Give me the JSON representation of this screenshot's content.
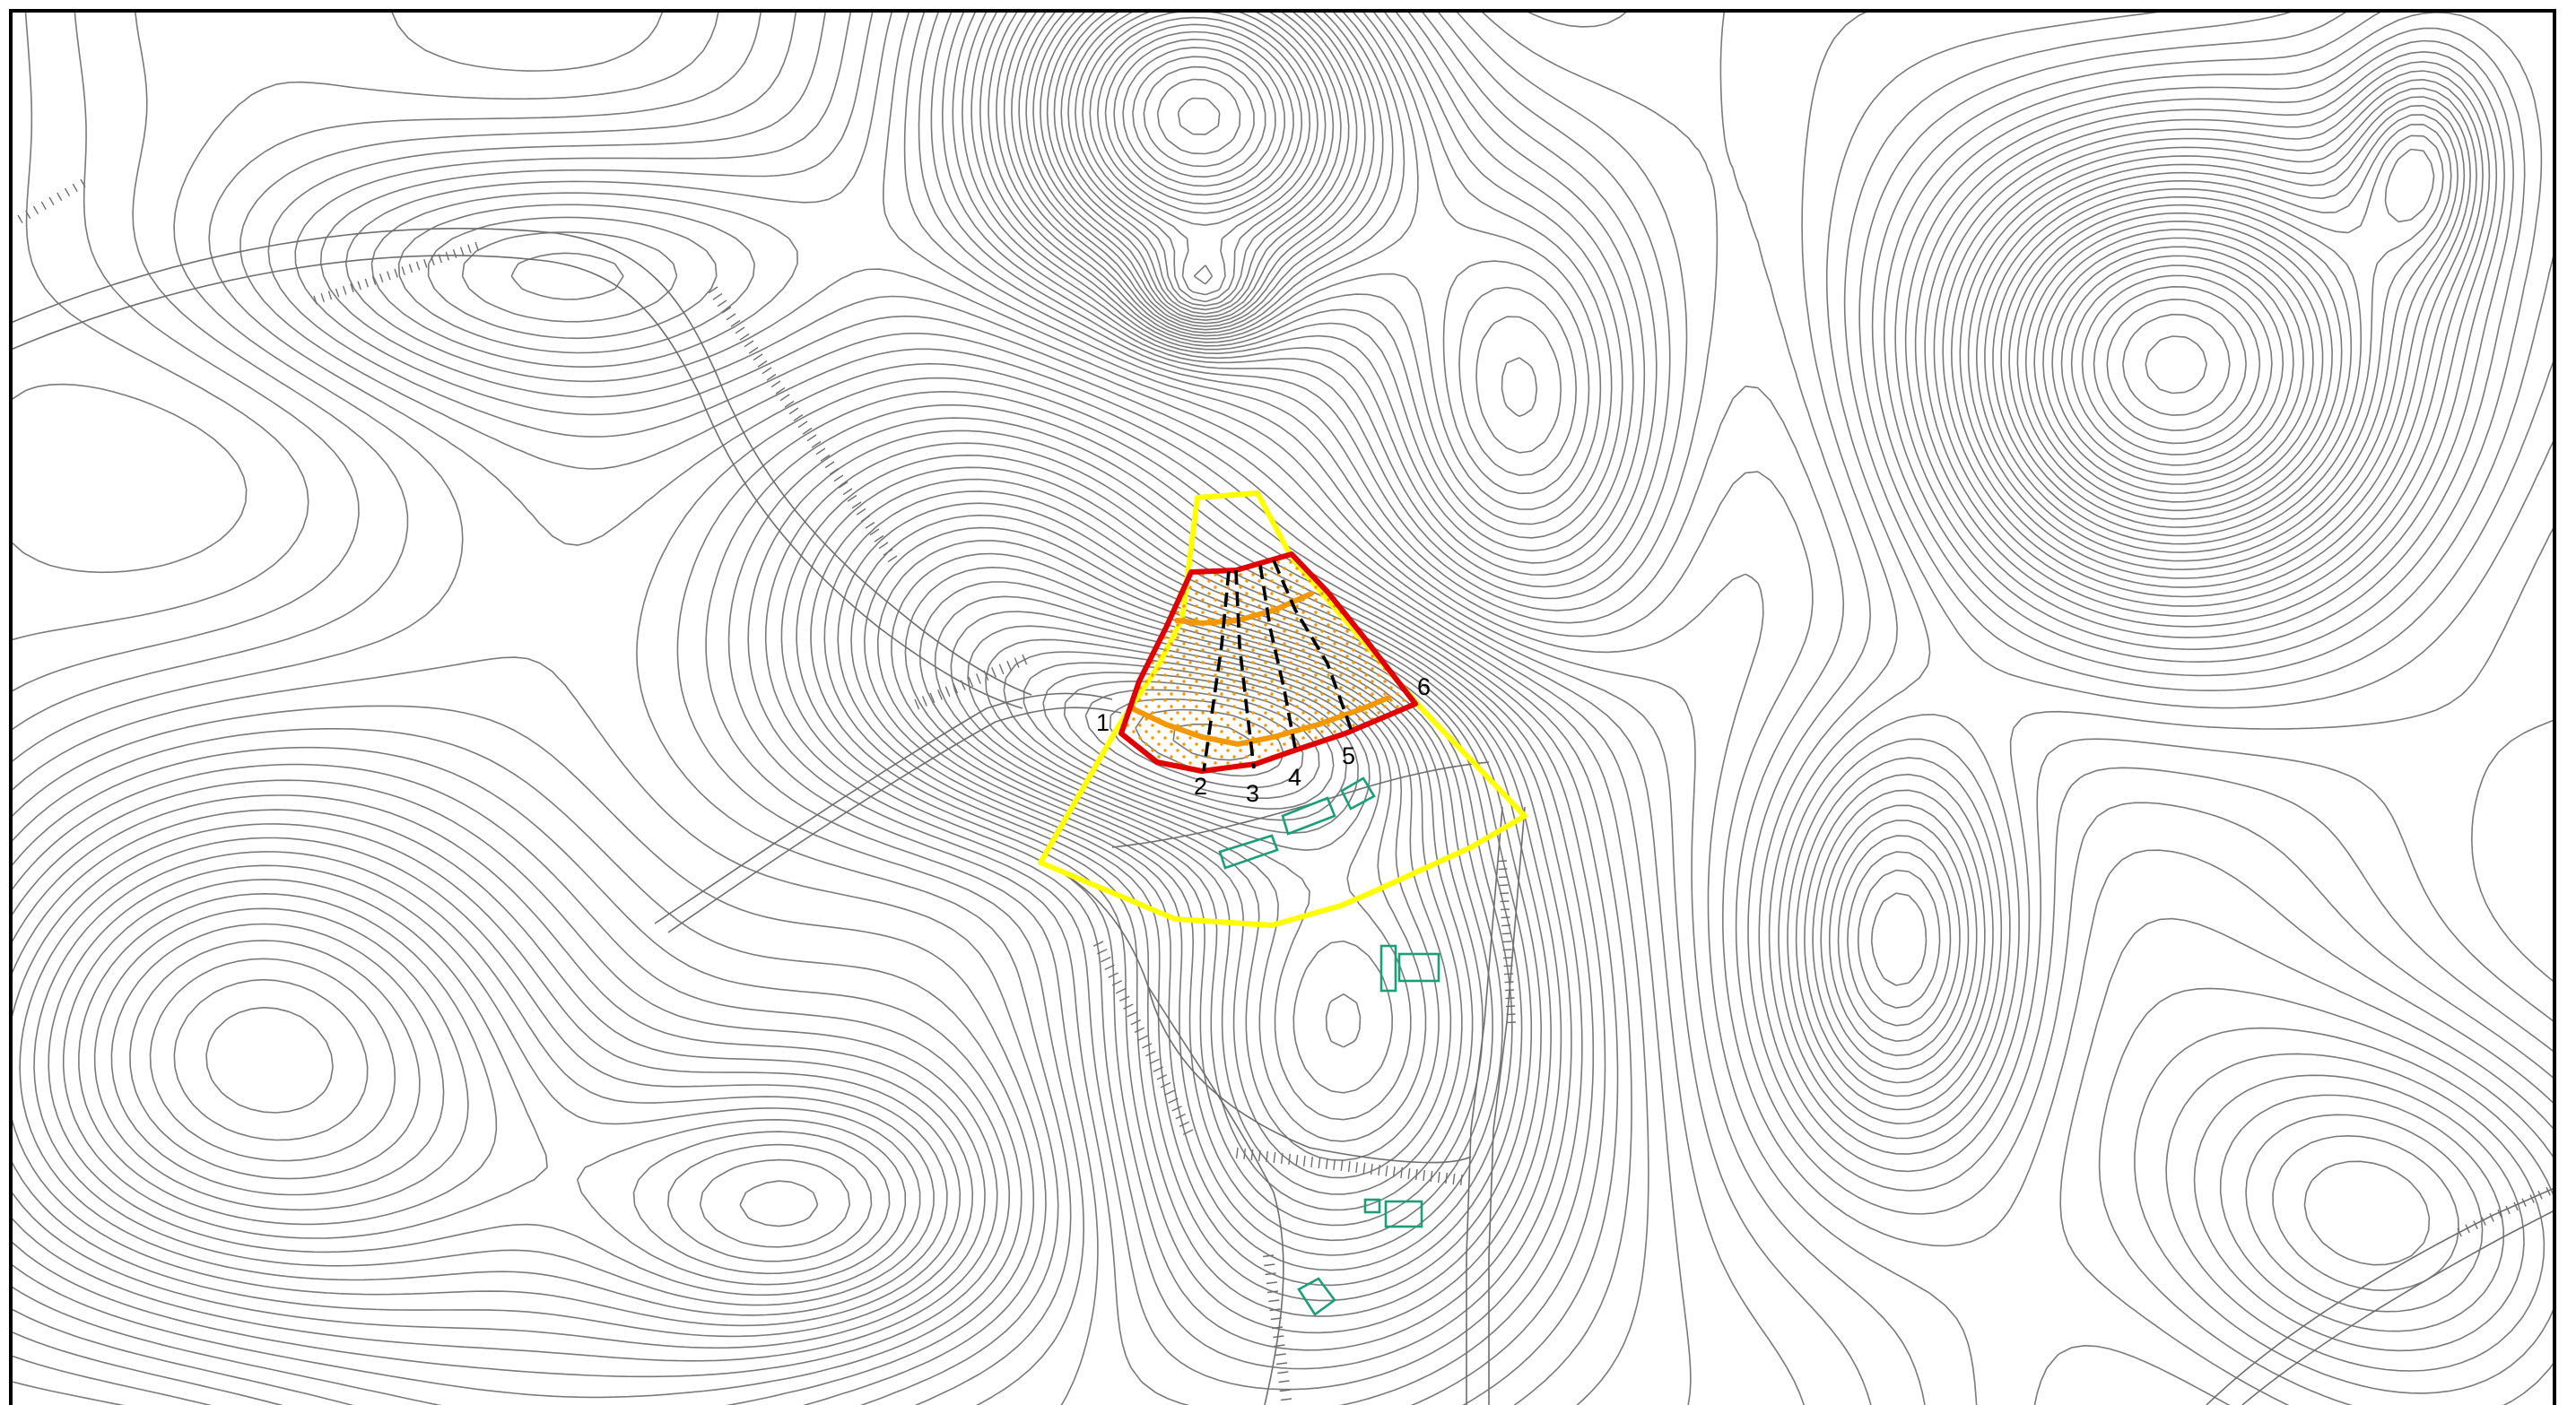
{
  "map": {
    "colors": {
      "background": "#ffffff",
      "frame": "#000000",
      "contour": "#7a7a7a",
      "study_area_boundary": "#ffff00",
      "landslide_boundary": "#e00000",
      "sub_zone_line": "#f39800",
      "dotted_fill": "#f39800",
      "profile_line": "#000000",
      "building": "#1a9e78"
    },
    "profiles": [
      {
        "label": "1"
      },
      {
        "label": "2"
      },
      {
        "label": "3"
      },
      {
        "label": "4"
      },
      {
        "label": "5"
      },
      {
        "label": "6"
      }
    ]
  }
}
